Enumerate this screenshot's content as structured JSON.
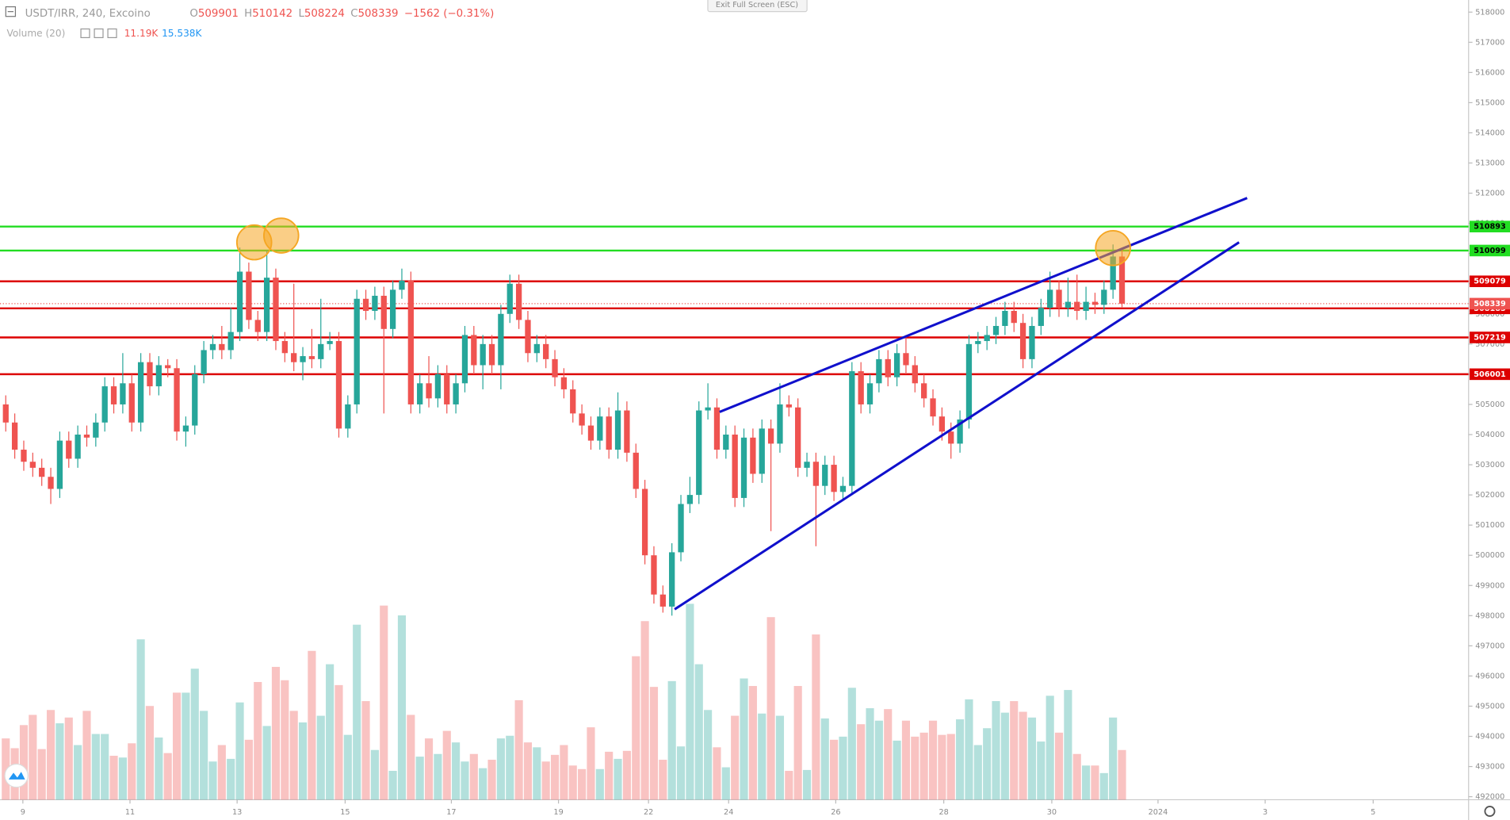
{
  "chart_data": {
    "type": "candlestick",
    "symbol": "USDT/IRR, 240, Excoino",
    "ohlc_labels": [
      "O",
      "H",
      "L",
      "C"
    ],
    "change": "−1562 (−0.31%)",
    "volume_legend": {
      "title": "Volume (20)",
      "values": [
        "11.19K",
        "15.538K"
      ]
    },
    "button": "Exit Full Screen (ESC)",
    "up_color": "#26a69a",
    "down_color": "#ef5350",
    "xlim": [
      -0.64,
      162.5
    ],
    "xticks": [
      {
        "value": 1.9,
        "label": "9"
      },
      {
        "value": 13.8,
        "label": "11"
      },
      {
        "value": 25.7,
        "label": "13"
      },
      {
        "value": 37.7,
        "label": "15"
      },
      {
        "value": 49.5,
        "label": "17"
      },
      {
        "value": 61.4,
        "label": "19"
      },
      {
        "value": 71.4,
        "label": "22"
      },
      {
        "value": 80.3,
        "label": "24"
      },
      {
        "value": 92.2,
        "label": "26"
      },
      {
        "value": 104.2,
        "label": "28"
      },
      {
        "value": 116.2,
        "label": "30"
      },
      {
        "value": 128,
        "label": "2024"
      },
      {
        "value": 139.9,
        "label": "3"
      },
      {
        "value": 151.9,
        "label": "5"
      }
    ],
    "ylim": [
      491900,
      518400
    ],
    "yticks": [
      492000,
      493000,
      494000,
      495000,
      496000,
      497000,
      498000,
      499000,
      500000,
      501000,
      502000,
      503000,
      504000,
      505000,
      506000,
      507000,
      508000,
      509000,
      510000,
      511000,
      512000,
      513000,
      514000,
      515000,
      516000,
      517000,
      518000
    ],
    "levels": [
      {
        "value": 510893,
        "color": "#22dd22"
      },
      {
        "value": 510099,
        "color": "#22dd22"
      },
      {
        "value": 509079,
        "color": "#dd0000"
      },
      {
        "value": 508183,
        "color": "#dd0000"
      },
      {
        "value": 507219,
        "color": "#dd0000"
      },
      {
        "value": 506001,
        "color": "#dd0000"
      }
    ],
    "trendlines": [
      {
        "x": [
          79.3,
          137.9
        ],
        "y": [
          504750,
          511840
        ],
        "color": "#1010cc"
      },
      {
        "x": [
          74.3,
          137.0
        ],
        "y": [
          498210,
          510371
        ],
        "color": "#1010cc"
      }
    ],
    "highlights": {
      "color": "#f5a623",
      "x": [
        27.6,
        30.6,
        123
      ],
      "y": [
        510370,
        510595,
        510180
      ]
    },
    "candles": [
      [
        505000,
        505300,
        504100,
        504400
      ],
      [
        504400,
        504700,
        503200,
        503500
      ],
      [
        503500,
        503800,
        502800,
        503100
      ],
      [
        503100,
        503400,
        502600,
        502900
      ],
      [
        502900,
        503200,
        502300,
        502600
      ],
      [
        502600,
        502900,
        501700,
        502200
      ],
      [
        502200,
        504100,
        501900,
        503800
      ],
      [
        503800,
        504100,
        502900,
        503200
      ],
      [
        503200,
        504300,
        502900,
        504000
      ],
      [
        504000,
        504300,
        503600,
        503900
      ],
      [
        503900,
        504700,
        503600,
        504400
      ],
      [
        504400,
        505900,
        504100,
        505600
      ],
      [
        505600,
        505900,
        504700,
        505000
      ],
      [
        505000,
        506700,
        504700,
        505700
      ],
      [
        505700,
        506000,
        504100,
        504400
      ],
      [
        504400,
        506700,
        504100,
        506400
      ],
      [
        506400,
        506700,
        505300,
        505600
      ],
      [
        505600,
        506600,
        505300,
        506300
      ],
      [
        506300,
        506500,
        505900,
        506200
      ],
      [
        506200,
        506500,
        503800,
        504100
      ],
      [
        504100,
        504600,
        503600,
        504300
      ],
      [
        504300,
        506300,
        504000,
        506000
      ],
      [
        506000,
        507100,
        505700,
        506800
      ],
      [
        506800,
        507300,
        506500,
        507000
      ],
      [
        507000,
        507600,
        506500,
        506800
      ],
      [
        506800,
        508200,
        506500,
        507400
      ],
      [
        507400,
        510200,
        507100,
        509400
      ],
      [
        509400,
        509700,
        507500,
        507800
      ],
      [
        507800,
        508100,
        507100,
        507400
      ],
      [
        507400,
        510100,
        507100,
        509200
      ],
      [
        509200,
        509500,
        506800,
        507100
      ],
      [
        507100,
        507400,
        506400,
        506700
      ],
      [
        506700,
        509000,
        506100,
        506400
      ],
      [
        506400,
        506900,
        505800,
        506600
      ],
      [
        506600,
        507500,
        506200,
        506500
      ],
      [
        506500,
        508500,
        506200,
        507000
      ],
      [
        507000,
        507400,
        506800,
        507100
      ],
      [
        507100,
        507400,
        503900,
        504200
      ],
      [
        504200,
        505300,
        503900,
        505000
      ],
      [
        505000,
        508800,
        504700,
        508500
      ],
      [
        508500,
        508800,
        507800,
        508100
      ],
      [
        508100,
        508900,
        507800,
        508600
      ],
      [
        508600,
        508900,
        504700,
        507500
      ],
      [
        507500,
        509100,
        507200,
        508800
      ],
      [
        508800,
        509500,
        508500,
        509100
      ],
      [
        509100,
        509400,
        504700,
        505000
      ],
      [
        505000,
        506000,
        504700,
        505700
      ],
      [
        505700,
        506600,
        504900,
        505200
      ],
      [
        505200,
        506300,
        504900,
        506000
      ],
      [
        506000,
        506300,
        504700,
        505000
      ],
      [
        505000,
        506000,
        504700,
        505700
      ],
      [
        505700,
        507600,
        505400,
        507300
      ],
      [
        507300,
        507600,
        506000,
        506300
      ],
      [
        506300,
        507300,
        505500,
        507000
      ],
      [
        507000,
        507300,
        506000,
        506300
      ],
      [
        506300,
        508300,
        505500,
        508000
      ],
      [
        508000,
        509300,
        507700,
        509000
      ],
      [
        509000,
        509300,
        507500,
        507800
      ],
      [
        507800,
        508100,
        506400,
        506700
      ],
      [
        506700,
        507300,
        506400,
        507000
      ],
      [
        507000,
        507300,
        506200,
        506500
      ],
      [
        506500,
        506800,
        505600,
        505900
      ],
      [
        505900,
        506200,
        505200,
        505500
      ],
      [
        505500,
        505800,
        504400,
        504700
      ],
      [
        504700,
        505000,
        504000,
        504300
      ],
      [
        504300,
        504600,
        503500,
        503800
      ],
      [
        503800,
        504900,
        503500,
        504600
      ],
      [
        504600,
        504900,
        503200,
        503500
      ],
      [
        503500,
        505400,
        503200,
        504800
      ],
      [
        504800,
        505100,
        503100,
        503400
      ],
      [
        503400,
        503700,
        501900,
        502200
      ],
      [
        502200,
        502500,
        499700,
        500000
      ],
      [
        500000,
        500300,
        498400,
        498700
      ],
      [
        498700,
        499000,
        498100,
        498300
      ],
      [
        498300,
        500400,
        498000,
        500100
      ],
      [
        500100,
        502000,
        499800,
        501700
      ],
      [
        501700,
        502600,
        501400,
        502000
      ],
      [
        502000,
        505100,
        501700,
        504800
      ],
      [
        504800,
        505700,
        504500,
        504900
      ],
      [
        504900,
        505200,
        503200,
        503500
      ],
      [
        503500,
        504300,
        503200,
        504000
      ],
      [
        504000,
        504300,
        501600,
        501900
      ],
      [
        501900,
        504200,
        501600,
        503900
      ],
      [
        503900,
        504200,
        502400,
        502700
      ],
      [
        502700,
        504500,
        502400,
        504200
      ],
      [
        504200,
        504500,
        500800,
        503700
      ],
      [
        503700,
        505700,
        503400,
        505000
      ],
      [
        505000,
        505300,
        504600,
        504900
      ],
      [
        504900,
        505200,
        502600,
        502900
      ],
      [
        502900,
        503400,
        502600,
        503100
      ],
      [
        503100,
        503400,
        500300,
        502300
      ],
      [
        502300,
        503300,
        502000,
        503000
      ],
      [
        503000,
        503300,
        501800,
        502100
      ],
      [
        502100,
        502600,
        501800,
        502300
      ],
      [
        502300,
        506400,
        502000,
        506100
      ],
      [
        506100,
        506400,
        504700,
        505000
      ],
      [
        505000,
        506000,
        504700,
        505700
      ],
      [
        505700,
        506800,
        505400,
        506500
      ],
      [
        506500,
        506800,
        505600,
        505900
      ],
      [
        505900,
        507000,
        505600,
        506700
      ],
      [
        506700,
        507300,
        506000,
        506300
      ],
      [
        506300,
        506600,
        505400,
        505700
      ],
      [
        505700,
        506000,
        504900,
        505200
      ],
      [
        505200,
        505500,
        504300,
        504600
      ],
      [
        504600,
        504900,
        503800,
        504100
      ],
      [
        504100,
        504400,
        503200,
        503700
      ],
      [
        503700,
        504800,
        503400,
        504500
      ],
      [
        504500,
        507300,
        504200,
        507000
      ],
      [
        507000,
        507400,
        506700,
        507100
      ],
      [
        507100,
        507600,
        506800,
        507300
      ],
      [
        507300,
        507900,
        507000,
        507600
      ],
      [
        507600,
        508400,
        507300,
        508100
      ],
      [
        508100,
        508400,
        507400,
        507700
      ],
      [
        507700,
        508000,
        506200,
        506500
      ],
      [
        506500,
        507900,
        506200,
        507600
      ],
      [
        507600,
        508500,
        507300,
        508200
      ],
      [
        508200,
        509400,
        507900,
        508800
      ],
      [
        508800,
        509100,
        507900,
        508200
      ],
      [
        508200,
        509200,
        507900,
        508400
      ],
      [
        508400,
        509300,
        507800,
        508100
      ],
      [
        508100,
        508900,
        507800,
        508400
      ],
      [
        508400,
        508700,
        508000,
        508300
      ],
      [
        508300,
        509100,
        508000,
        508800
      ],
      [
        508800,
        510300,
        508500,
        509901
      ],
      [
        509901,
        510142,
        508224,
        508339
      ]
    ],
    "volume": [
      13.8,
      11.6,
      16.8,
      19.1,
      11.4,
      20.2,
      17.2,
      18.5,
      12.3,
      20,
      14.8,
      14.8,
      9.9,
      9.5,
      12.7,
      36.1,
      21.1,
      14,
      10.5,
      24.1,
      24.1,
      29.5,
      20,
      8.6,
      12.3,
      9.2,
      21.9,
      13.5,
      26.5,
      16.6,
      29.9,
      26.9,
      20,
      17.4,
      33.5,
      18.9,
      30.5,
      25.8,
      14.6,
      39.4,
      22.2,
      11.2,
      43.7,
      6.5,
      41.5,
      19.1,
      9.7,
      13.8,
      10.3,
      15.5,
      12.9,
      8.6,
      10.3,
      7.1,
      9,
      13.8,
      14.4,
      22.4,
      12.9,
      11.8,
      8.6,
      10.1,
      12.3,
      7.7,
      6.9,
      16.3,
      6.9,
      10.8,
      9.2,
      11,
      32.3,
      40.2,
      25.4,
      9,
      26.7,
      12,
      44.1,
      30.5,
      20.2,
      11.8,
      7.3,
      18.9,
      27.3,
      25.6,
      19.4,
      41.1,
      18.9,
      6.5,
      25.6,
      6.7,
      37.2,
      18.3,
      13.5,
      14.2,
      25.2,
      17,
      20.6,
      17.8,
      20.4,
      13.3,
      17.8,
      14.2,
      15.1,
      17.8,
      14.6,
      14.8,
      18.1,
      22.6,
      12.3,
      16.1,
      22.2,
      19.6,
      22.2,
      19.8,
      18.5,
      13.1,
      23.4,
      15.1,
      24.7,
      10.3,
      7.7,
      7.7,
      6,
      18.5,
      11.19
    ]
  }
}
